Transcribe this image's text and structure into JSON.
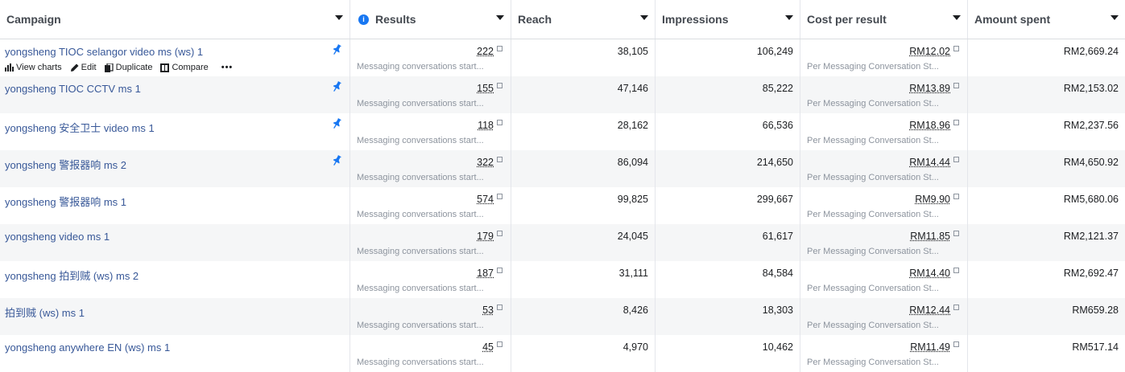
{
  "header": {
    "campaign": "Campaign",
    "results": "Results",
    "reach": "Reach",
    "impressions": "Impressions",
    "cost_per_result": "Cost per result",
    "amount_spent": "Amount spent"
  },
  "actions": {
    "view_charts": "View charts",
    "edit": "Edit",
    "duplicate": "Duplicate",
    "compare": "Compare",
    "more": "•••"
  },
  "rows": [
    {
      "name": "yongsheng TIOC selangor video ms (ws) 1",
      "pinned": true,
      "results": "222",
      "results_sub": "Messaging conversations start...",
      "reach": "38,105",
      "impressions": "106,249",
      "cpr": "RM12.02",
      "cpr_sub": "Per Messaging Conversation St...",
      "spent": "RM2,669.24"
    },
    {
      "name": "yongsheng TIOC CCTV ms 1",
      "pinned": true,
      "results": "155",
      "results_sub": "Messaging conversations start...",
      "reach": "47,146",
      "impressions": "85,222",
      "cpr": "RM13.89",
      "cpr_sub": "Per Messaging Conversation St...",
      "spent": "RM2,153.02"
    },
    {
      "name": "yongsheng 安全卫士 video ms 1",
      "pinned": true,
      "results": "118",
      "results_sub": "Messaging conversations start...",
      "reach": "28,162",
      "impressions": "66,536",
      "cpr": "RM18.96",
      "cpr_sub": "Per Messaging Conversation St...",
      "spent": "RM2,237.56"
    },
    {
      "name": "yongsheng 警报器响 ms 2",
      "pinned": true,
      "results": "322",
      "results_sub": "Messaging conversations start...",
      "reach": "86,094",
      "impressions": "214,650",
      "cpr": "RM14.44",
      "cpr_sub": "Per Messaging Conversation St...",
      "spent": "RM4,650.92"
    },
    {
      "name": "yongsheng 警报器响 ms 1",
      "pinned": false,
      "results": "574",
      "results_sub": "Messaging conversations start...",
      "reach": "99,825",
      "impressions": "299,667",
      "cpr": "RM9.90",
      "cpr_sub": "Per Messaging Conversation St...",
      "spent": "RM5,680.06"
    },
    {
      "name": "yongsheng video ms 1",
      "pinned": false,
      "results": "179",
      "results_sub": "Messaging conversations start...",
      "reach": "24,045",
      "impressions": "61,617",
      "cpr": "RM11.85",
      "cpr_sub": "Per Messaging Conversation St...",
      "spent": "RM2,121.37"
    },
    {
      "name": "yongsheng 拍到贼 (ws) ms 2",
      "pinned": false,
      "results": "187",
      "results_sub": "Messaging conversations start...",
      "reach": "31,111",
      "impressions": "84,584",
      "cpr": "RM14.40",
      "cpr_sub": "Per Messaging Conversation St...",
      "spent": "RM2,692.47"
    },
    {
      "name": "拍到贼 (ws) ms 1",
      "pinned": false,
      "results": "53",
      "results_sub": "Messaging conversations start...",
      "reach": "8,426",
      "impressions": "18,303",
      "cpr": "RM12.44",
      "cpr_sub": "Per Messaging Conversation St...",
      "spent": "RM659.28"
    },
    {
      "name": "yongsheng anywhere EN (ws) ms 1",
      "pinned": false,
      "results": "45",
      "results_sub": "Messaging conversations start...",
      "reach": "4,970",
      "impressions": "10,462",
      "cpr": "RM11.49",
      "cpr_sub": "Per Messaging Conversation St...",
      "spent": "RM517.14"
    }
  ],
  "colors": {
    "link": "#385898",
    "info_badge": "#1877f2",
    "alt_row": "#f5f6f7"
  }
}
